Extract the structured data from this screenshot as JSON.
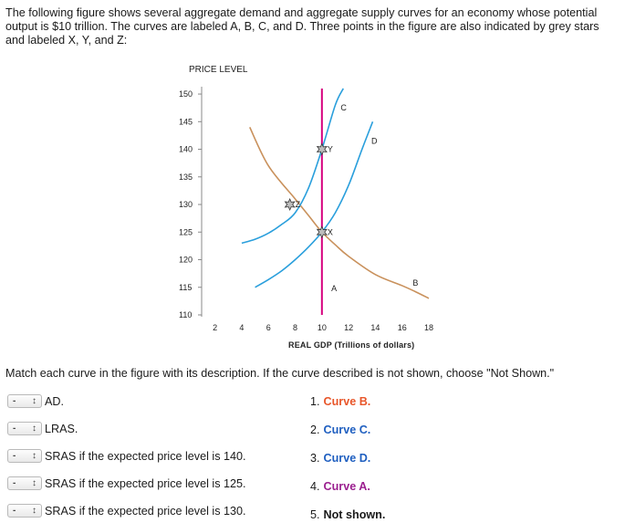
{
  "question": {
    "intro": "The following figure shows several aggregate demand and aggregate supply curves for an economy whose potential output is $10 trillion. The curves are labeled A, B, C, and D. Three points in the figure are also indicated by grey stars and labeled X, Y, and Z:",
    "instructions": "Match each curve in the figure with its description. If the curve described is not shown, choose \"Not Shown.\""
  },
  "chart_data": {
    "type": "line",
    "ylabel": "PRICE LEVEL",
    "xlabel": "REAL GDP (Trillions of dollars)",
    "xlim": [
      1,
      18
    ],
    "ylim": [
      110,
      151
    ],
    "x_ticks": [
      2,
      4,
      6,
      8,
      10,
      12,
      14,
      16,
      18
    ],
    "y_ticks": [
      110,
      115,
      120,
      125,
      130,
      135,
      140,
      145,
      150
    ],
    "grid": false,
    "series": [
      {
        "name": "A",
        "color": "#d6007e",
        "kind": "vertical",
        "x": 10,
        "y_range": [
          110,
          151
        ],
        "label_at": {
          "x": 10.7,
          "y": 114.3
        }
      },
      {
        "name": "B",
        "color": "#c9915c",
        "x": [
          4.6,
          6,
          8,
          9,
          10,
          11,
          12,
          14,
          16,
          17,
          18
        ],
        "y": [
          144,
          137,
          131,
          128,
          125,
          122.7,
          120.6,
          117.3,
          115.3,
          114.2,
          113
        ],
        "label_at": {
          "x": 16.8,
          "y": 115.3
        }
      },
      {
        "name": "C",
        "color": "#2a9fdc",
        "x": [
          4,
          5,
          6,
          7,
          8,
          9,
          10,
          11,
          11.6
        ],
        "y": [
          123,
          123.7,
          124.8,
          126.4,
          128.5,
          133,
          140,
          148,
          151
        ],
        "label_at": {
          "x": 11.4,
          "y": 147
        }
      },
      {
        "name": "D",
        "color": "#2a9fdc",
        "x": [
          5,
          6,
          7,
          8,
          9,
          10,
          11,
          12,
          13,
          13.8
        ],
        "y": [
          115,
          116.4,
          118,
          120,
          122.3,
          125,
          128.5,
          133.5,
          140,
          145
        ],
        "label_at": {
          "x": 13.7,
          "y": 141
        }
      }
    ],
    "points": [
      {
        "label": "X",
        "x": 10,
        "y": 125
      },
      {
        "label": "Y",
        "x": 10,
        "y": 140
      },
      {
        "label": "Z",
        "x": 7.6,
        "y": 130
      }
    ]
  },
  "matches": [
    {
      "selected": "-",
      "description": "AD."
    },
    {
      "selected": "-",
      "description": "LRAS."
    },
    {
      "selected": "-",
      "description": "SRAS if the expected price level is 140."
    },
    {
      "selected": "-",
      "description": "SRAS if the expected price level is 125."
    },
    {
      "selected": "-",
      "description": "SRAS if the expected price level is 130."
    }
  ],
  "options": [
    {
      "number": "1.",
      "text": "Curve B.",
      "color": "#e8562a"
    },
    {
      "number": "2.",
      "text": "Curve C.",
      "color": "#1f5fc0"
    },
    {
      "number": "3.",
      "text": "Curve D.",
      "color": "#1f5fc0"
    },
    {
      "number": "4.",
      "text": "Curve A.",
      "color": "#9b1f8f"
    },
    {
      "number": "5.",
      "text": "Not shown.",
      "color": "#1a1a1a"
    }
  ]
}
